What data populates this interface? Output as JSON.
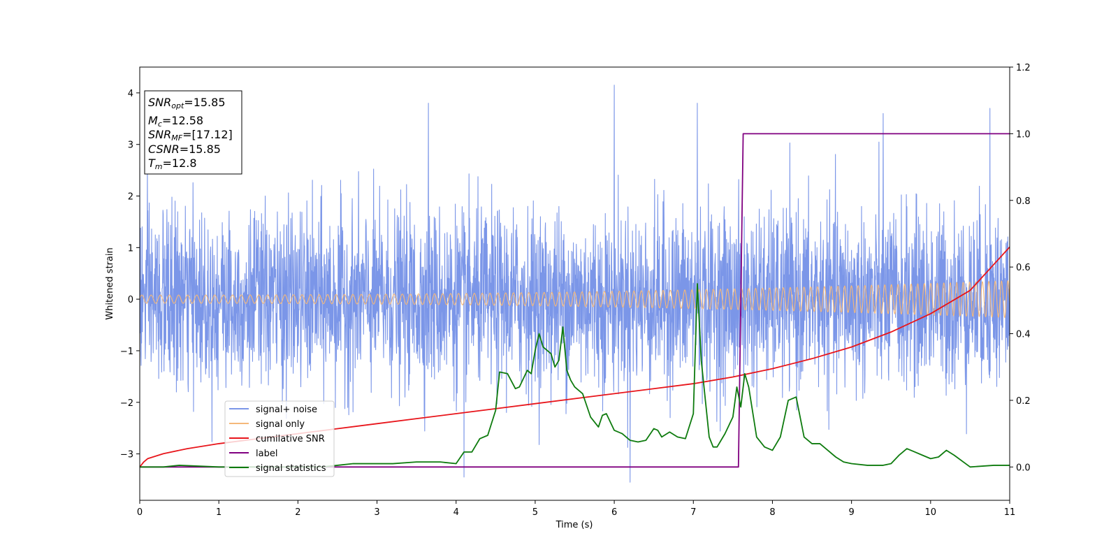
{
  "chart_data": {
    "type": "line",
    "xlabel": "Time (s)",
    "ylabel": "Whitened strain",
    "xlim": [
      0,
      11
    ],
    "ylim_left": [
      -3.9,
      4.5
    ],
    "ylim_right": [
      -0.1,
      1.2
    ],
    "x_ticks": [
      0,
      1,
      2,
      3,
      4,
      5,
      6,
      7,
      8,
      9,
      10,
      11
    ],
    "y_ticks_left": [
      -3,
      -2,
      -1,
      0,
      1,
      2,
      3,
      4
    ],
    "y_ticks_left_labels": [
      "−3",
      "−2",
      "−1",
      "0",
      "1",
      "2",
      "3",
      "4"
    ],
    "y_ticks_right": [
      0.0,
      0.2,
      0.4,
      0.6,
      0.8,
      1.0,
      1.2
    ],
    "y_ticks_right_labels": [
      "0.0",
      "0.2",
      "0.4",
      "0.6",
      "0.8",
      "1.0",
      "1.2"
    ],
    "grid": false,
    "legend_placement": "lower-left",
    "annotation": [
      {
        "base": "SNR",
        "sub": "opt",
        "value": "=15.85"
      },
      {
        "base": "M",
        "sub": "c",
        "value": "=12.58"
      },
      {
        "base": "SNR",
        "sub": "MF",
        "value": "=[17.12]"
      },
      {
        "base": "CSNR",
        "sub": "",
        "value": "=15.85"
      },
      {
        "base": "T",
        "sub": "m",
        "value": "=12.8"
      }
    ],
    "series": [
      {
        "name": "signal+ noise",
        "axis": "left",
        "color": "#7b96e8",
        "kind": "noise",
        "sigma": 0.85,
        "spike_peaks": [
          [
            6.0,
            4.15
          ],
          [
            0.0,
            2.55
          ],
          [
            3.65,
            3.8
          ],
          [
            7.05,
            3.8
          ],
          [
            10.75,
            3.7
          ],
          [
            9.4,
            3.6
          ],
          [
            4.1,
            -3.45
          ],
          [
            6.2,
            -3.55
          ]
        ]
      },
      {
        "name": "signal only",
        "axis": "left",
        "color": "#f5b87a",
        "kind": "chirp",
        "amplitude_start": 0.08,
        "amplitude_end": 0.36,
        "frequency_start_hz": 8.5,
        "frequency_end_hz": 12.5
      },
      {
        "name": "cumilative SNR",
        "axis": "right",
        "color": "#e8151b",
        "x": [
          0,
          0.05,
          0.1,
          0.3,
          0.6,
          1.0,
          1.5,
          2.0,
          2.5,
          3.0,
          3.5,
          4.0,
          4.5,
          5.0,
          5.5,
          6.0,
          6.5,
          7.0,
          7.5,
          8.0,
          8.5,
          9.0,
          9.5,
          10.0,
          10.5,
          11.0
        ],
        "y": [
          0.0,
          0.015,
          0.025,
          0.04,
          0.055,
          0.07,
          0.085,
          0.1,
          0.115,
          0.13,
          0.145,
          0.16,
          0.175,
          0.19,
          0.205,
          0.22,
          0.235,
          0.25,
          0.27,
          0.295,
          0.325,
          0.36,
          0.405,
          0.46,
          0.53,
          0.66
        ]
      },
      {
        "name": "label",
        "axis": "right",
        "color": "#800080",
        "x": [
          0,
          7.57,
          7.63,
          11.0
        ],
        "y": [
          0.0,
          0.0,
          1.0,
          1.0
        ]
      },
      {
        "name": "signal statistics",
        "axis": "right",
        "color": "#0e7b0e",
        "x": [
          0,
          0.3,
          0.5,
          1.0,
          1.5,
          2.0,
          2.3,
          2.5,
          2.7,
          3.0,
          3.2,
          3.5,
          3.8,
          4.0,
          4.1,
          4.2,
          4.3,
          4.4,
          4.5,
          4.55,
          4.65,
          4.75,
          4.8,
          4.9,
          4.95,
          5.0,
          5.05,
          5.1,
          5.2,
          5.25,
          5.3,
          5.35,
          5.4,
          5.45,
          5.5,
          5.6,
          5.7,
          5.8,
          5.85,
          5.9,
          6.0,
          6.1,
          6.2,
          6.3,
          6.4,
          6.5,
          6.55,
          6.6,
          6.7,
          6.8,
          6.9,
          7.0,
          7.05,
          7.1,
          7.2,
          7.25,
          7.3,
          7.4,
          7.5,
          7.55,
          7.6,
          7.65,
          7.7,
          7.8,
          7.9,
          8.0,
          8.1,
          8.2,
          8.3,
          8.4,
          8.5,
          8.6,
          8.7,
          8.8,
          8.9,
          9.0,
          9.2,
          9.4,
          9.5,
          9.6,
          9.7,
          9.8,
          9.9,
          10.0,
          10.1,
          10.2,
          10.3,
          10.5,
          10.8,
          11.0
        ],
        "y": [
          0.0,
          0.0,
          0.005,
          0.0,
          0.0,
          0.0,
          0.0,
          0.005,
          0.01,
          0.01,
          0.01,
          0.015,
          0.015,
          0.01,
          0.045,
          0.045,
          0.085,
          0.095,
          0.17,
          0.285,
          0.28,
          0.235,
          0.24,
          0.29,
          0.28,
          0.35,
          0.4,
          0.36,
          0.34,
          0.3,
          0.32,
          0.42,
          0.29,
          0.26,
          0.24,
          0.22,
          0.15,
          0.12,
          0.155,
          0.16,
          0.11,
          0.1,
          0.08,
          0.075,
          0.08,
          0.115,
          0.11,
          0.09,
          0.105,
          0.09,
          0.085,
          0.16,
          0.55,
          0.32,
          0.09,
          0.06,
          0.06,
          0.1,
          0.15,
          0.24,
          0.18,
          0.28,
          0.24,
          0.09,
          0.06,
          0.05,
          0.09,
          0.2,
          0.21,
          0.09,
          0.07,
          0.07,
          0.05,
          0.03,
          0.015,
          0.01,
          0.005,
          0.005,
          0.01,
          0.035,
          0.055,
          0.045,
          0.035,
          0.025,
          0.03,
          0.05,
          0.035,
          0.0,
          0.005,
          0.005
        ]
      }
    ]
  }
}
